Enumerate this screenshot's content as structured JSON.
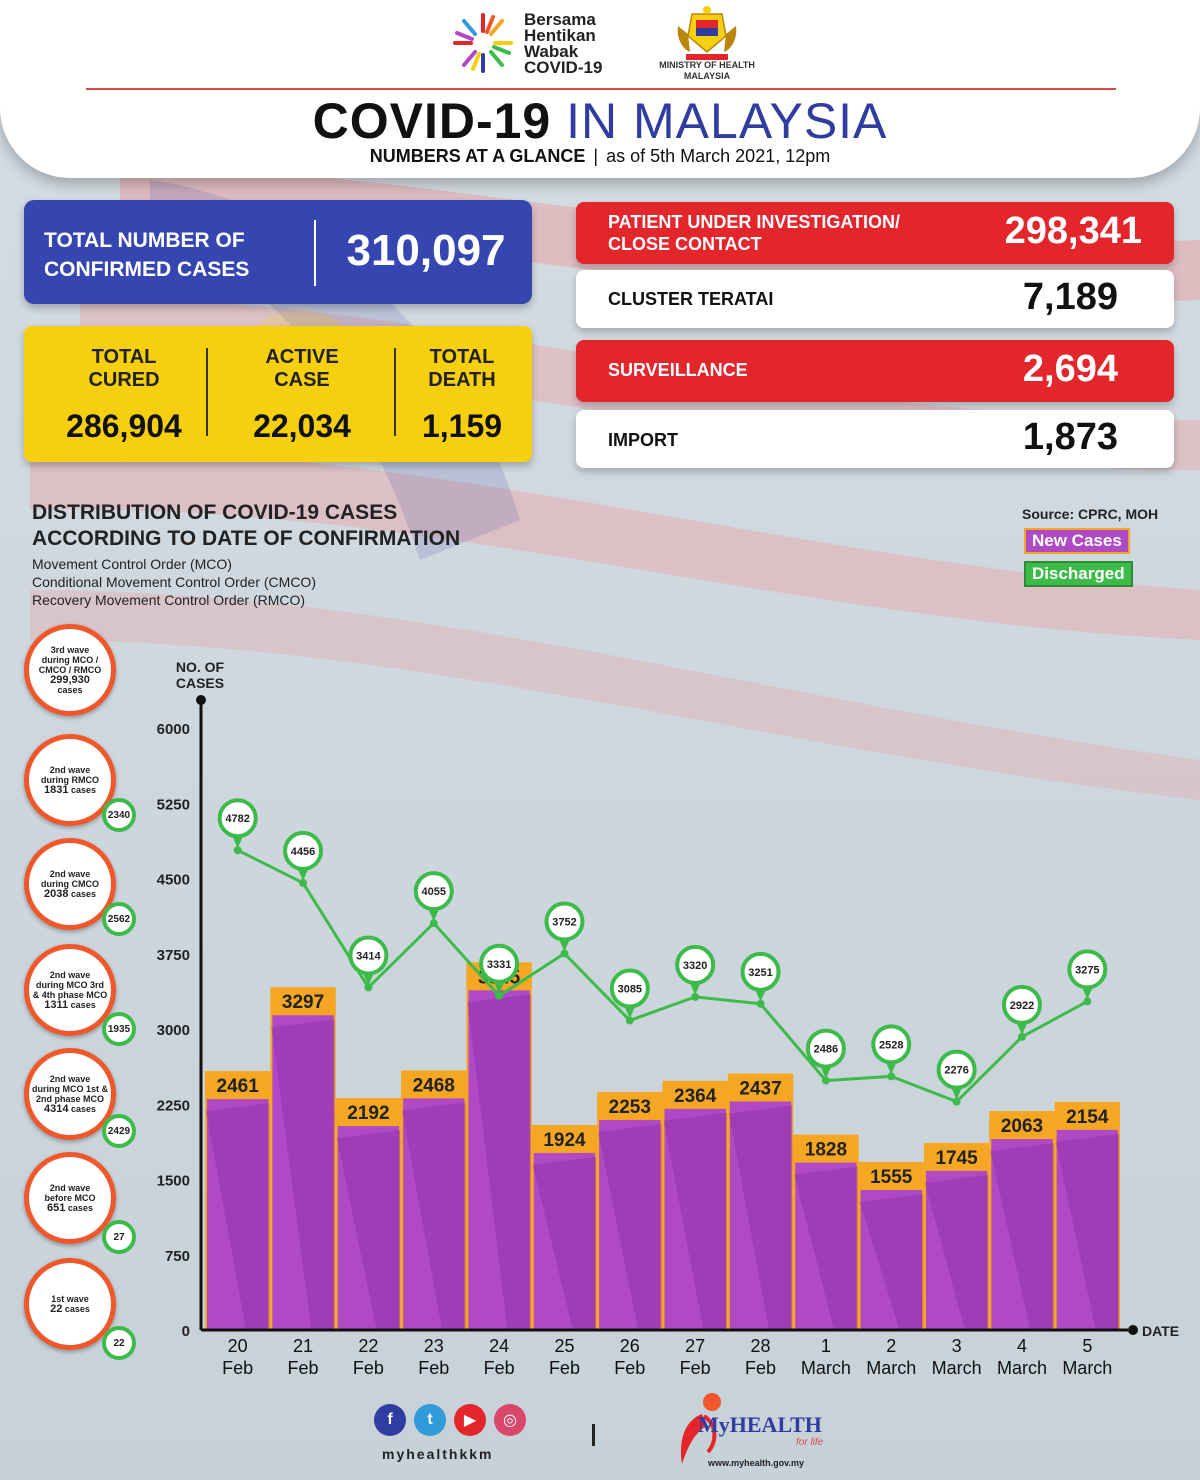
{
  "header": {
    "campaign": [
      "Bersama",
      "Hentikan",
      "Wabak",
      "COVID-19"
    ],
    "ministry": "MINISTRY OF HEALTH MALAYSIA",
    "title_part1": "COVID-19",
    "title_part2": "IN MALAYSIA",
    "subtitle_bold": "NUMBERS AT A GLANCE",
    "subtitle_sep": "|",
    "subtitle_date": "as of 5th March 2021, 12pm"
  },
  "totals": {
    "confirmed_label": "TOTAL NUMBER OF CONFIRMED CASES",
    "confirmed_value": "310,097",
    "cured_label": "TOTAL CURED",
    "cured_value": "286,904",
    "active_label": "ACTIVE CASE",
    "active_value": "22,034",
    "death_label": "TOTAL DEATH",
    "death_value": "1,159"
  },
  "stats": [
    {
      "label": "PATIENT UNDER INVESTIGATION/ CLOSE CONTACT",
      "value": "298,341",
      "style": "red"
    },
    {
      "label": "CLUSTER TERATAI",
      "value": "7,189",
      "style": "white"
    },
    {
      "label": "SURVEILLANCE",
      "value": "2,694",
      "style": "red"
    },
    {
      "label": "IMPORT",
      "value": "1,873",
      "style": "white"
    }
  ],
  "section": {
    "title_line1": "DISTRIBUTION OF COVID-19 CASES",
    "title_line2": "ACCORDING TO DATE OF CONFIRMATION",
    "notes": [
      "Movement Control Order (MCO)",
      "Conditional Movement Control Order (CMCO)",
      "Recovery Movement Control Order (RMCO)"
    ],
    "source": "Source: CPRC, MOH",
    "legend_new": "New Cases",
    "legend_discharged": "Discharged"
  },
  "waves": [
    {
      "lines": [
        "3rd wave",
        "during MCO /",
        "CMCO / RMCO"
      ],
      "value": "299,930",
      "unit": "cases",
      "badge": ""
    },
    {
      "lines": [
        "2nd wave",
        "during RMCO"
      ],
      "value": "1831",
      "unit": "cases",
      "badge": "2340"
    },
    {
      "lines": [
        "2nd wave",
        "during CMCO"
      ],
      "value": "2038",
      "unit": "cases",
      "badge": "2562"
    },
    {
      "lines": [
        "2nd wave",
        "during MCO 3rd",
        "& 4th phase MCO"
      ],
      "value": "1311",
      "unit": "cases",
      "badge": "1935"
    },
    {
      "lines": [
        "2nd wave",
        "during MCO 1st &",
        "2nd phase MCO"
      ],
      "value": "4314",
      "unit": "cases",
      "badge": "2429"
    },
    {
      "lines": [
        "2nd wave",
        "before MCO"
      ],
      "value": "651",
      "unit": "cases",
      "badge": "27"
    },
    {
      "lines": [
        "1st wave"
      ],
      "value": "22",
      "unit": "cases",
      "badge": "22"
    }
  ],
  "chart_data": {
    "type": "bar",
    "title": "DISTRIBUTION OF COVID-19 CASES ACCORDING TO DATE OF CONFIRMATION",
    "ylabel": "NO. OF CASES",
    "xlabel": "DATE",
    "ylim": [
      0,
      6000
    ],
    "yticks": [
      0,
      750,
      1500,
      2250,
      3000,
      3750,
      4500,
      5250,
      6000
    ],
    "categories": [
      [
        "20",
        "Feb"
      ],
      [
        "21",
        "Feb"
      ],
      [
        "22",
        "Feb"
      ],
      [
        "23",
        "Feb"
      ],
      [
        "24",
        "Feb"
      ],
      [
        "25",
        "Feb"
      ],
      [
        "26",
        "Feb"
      ],
      [
        "27",
        "Feb"
      ],
      [
        "28",
        "Feb"
      ],
      [
        "1",
        "March"
      ],
      [
        "2",
        "March"
      ],
      [
        "3",
        "March"
      ],
      [
        "4",
        "March"
      ],
      [
        "5",
        "March"
      ]
    ],
    "series": [
      {
        "name": "New Cases",
        "type": "bar",
        "color": "#b04ac4",
        "values": [
          2461,
          3297,
          2192,
          2468,
          3545,
          1924,
          2253,
          2364,
          2437,
          1828,
          1555,
          1745,
          2063,
          2154
        ]
      },
      {
        "name": "Discharged",
        "type": "line",
        "color": "#3dbb4a",
        "values": [
          4782,
          4456,
          3414,
          4055,
          3331,
          3752,
          3085,
          3320,
          3251,
          2486,
          2528,
          2276,
          2922,
          3275
        ]
      }
    ],
    "grid": false,
    "legend": "top-right"
  },
  "footer": {
    "social_icons": [
      "facebook-icon",
      "twitter-icon",
      "youtube-icon",
      "instagram-icon"
    ],
    "handle": "myhealthkkm",
    "divider": "|",
    "brand": "MyHEALTH",
    "tagline": "for life",
    "url": "www.myhealth.gov.my"
  }
}
